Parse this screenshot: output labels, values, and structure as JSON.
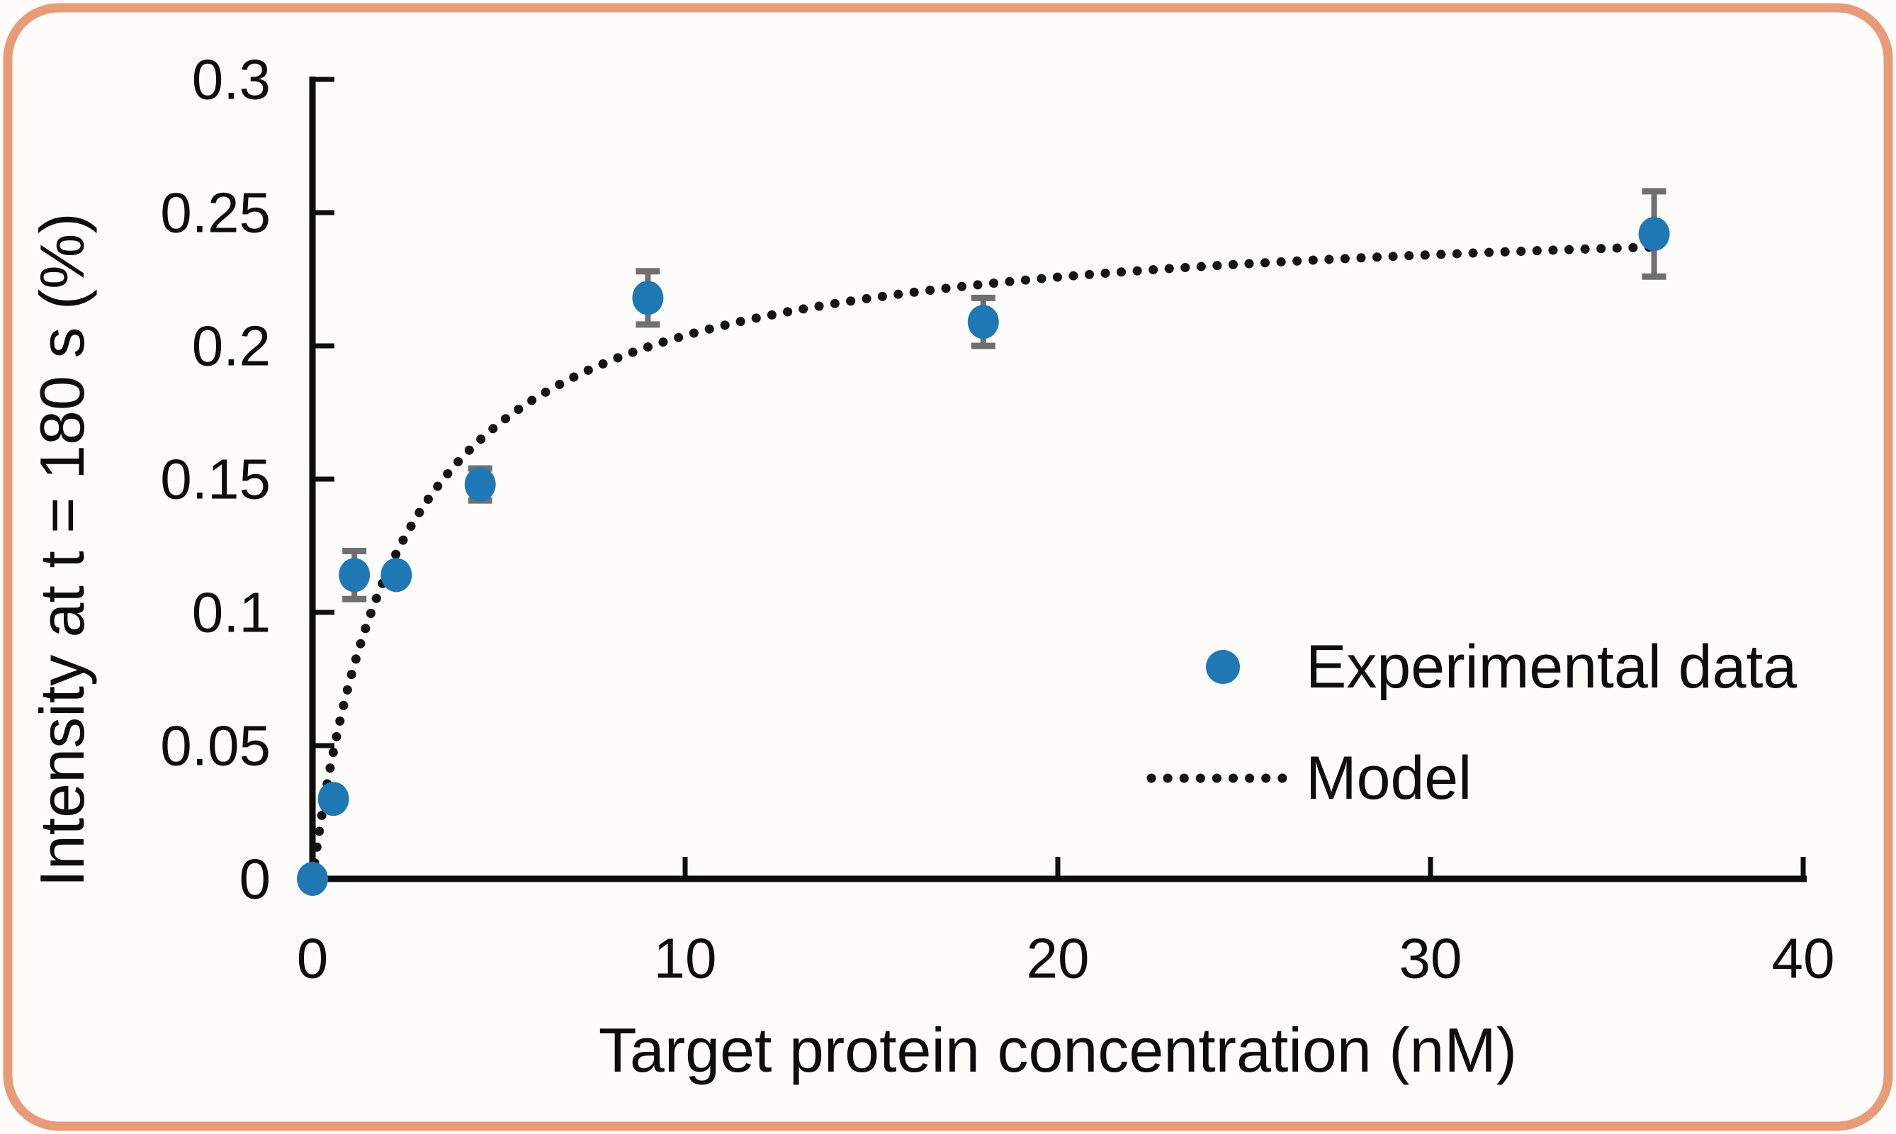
{
  "figure": {
    "background_color": "#FDFCFA",
    "border_color": "#E89B78"
  },
  "chart_data": {
    "type": "scatter",
    "title": "",
    "xlabel": "Target protein concentration (nM)",
    "ylabel": "Intensity at t = 180 s (%)",
    "xlim": [
      0,
      40
    ],
    "ylim": [
      0,
      0.3
    ],
    "x_ticks": [
      0,
      10,
      20,
      30,
      40
    ],
    "x_tick_labels": [
      "0",
      "10",
      "20",
      "30",
      "40"
    ],
    "y_ticks": [
      0,
      0.05,
      0.1,
      0.15,
      0.2,
      0.25,
      0.3
    ],
    "y_tick_labels": [
      "0",
      "0.05",
      "0.1",
      "0.15",
      "0.2",
      "0.25",
      "0.3"
    ],
    "grid": false,
    "axis_color": "#0d0d0d",
    "legend_position": "center-right",
    "series": [
      {
        "name": "Experimental data",
        "type": "scatter",
        "color": "#1F77B4",
        "error_color": "#6F6F6F",
        "points": [
          {
            "x": 0,
            "y": 0.0,
            "yerr": 0
          },
          {
            "x": 0.5625,
            "y": 0.03,
            "yerr": 0
          },
          {
            "x": 1.125,
            "y": 0.114,
            "yerr": 0.009
          },
          {
            "x": 2.25,
            "y": 0.114,
            "yerr": 0.003
          },
          {
            "x": 4.5,
            "y": 0.148,
            "yerr": 0.006
          },
          {
            "x": 9,
            "y": 0.218,
            "yerr": 0.01
          },
          {
            "x": 18,
            "y": 0.209,
            "yerr": 0.009
          },
          {
            "x": 36,
            "y": 0.242,
            "yerr": 0.016
          }
        ]
      },
      {
        "name": "Model",
        "type": "dotted-line",
        "color": "#141414",
        "model": {
          "form": "y = Bmax*x/(Kd+x)",
          "Bmax": 0.253,
          "Kd": 2.41,
          "x_range": [
            0,
            36
          ]
        }
      }
    ],
    "legend": [
      {
        "label": "Experimental data",
        "marker": "circle"
      },
      {
        "label": "Model",
        "marker": "dotted-line"
      }
    ]
  }
}
